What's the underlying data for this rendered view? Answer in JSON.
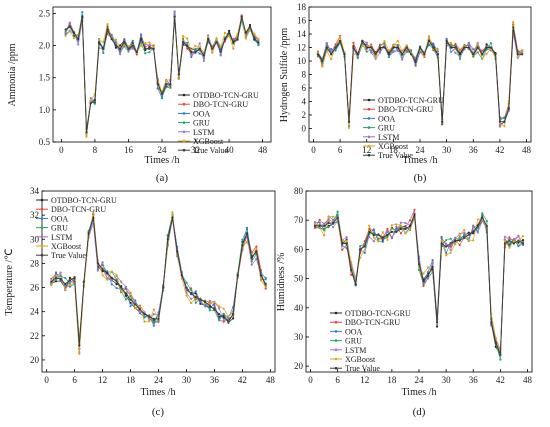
{
  "legend_labels": [
    "OTDBO-TCN-GRU",
    "DBO-TCN-GRU",
    "OOA",
    "GRU",
    "LSTM",
    "XGBoost",
    "True Value"
  ],
  "series_colors": [
    "#222222",
    "#e8413b",
    "#2f7fd0",
    "#23a36b",
    "#9b74c9",
    "#d9a514",
    "#3a3a3a"
  ],
  "chart_data": [
    {
      "type": "line",
      "caption": "(a)",
      "xlabel": "Times /h",
      "ylabel": "Ammonia /ppm",
      "xlim": [
        -2,
        50
      ],
      "ylim": [
        0.5,
        2.6
      ],
      "xticks": [
        0,
        8,
        16,
        24,
        32,
        40,
        48
      ],
      "yticks": [
        0.5,
        1.0,
        1.5,
        2.0,
        2.5
      ],
      "ytick_labels": [
        "0.5",
        "1.0",
        "1.5",
        "2.0",
        "2.5"
      ],
      "legend_position": "lower-right",
      "x": [
        1,
        2,
        3,
        4,
        5,
        6,
        7,
        8,
        9,
        10,
        11,
        12,
        13,
        14,
        15,
        16,
        17,
        18,
        19,
        20,
        21,
        22,
        23,
        24,
        25,
        26,
        27,
        28,
        29,
        30,
        31,
        32,
        33,
        34,
        35,
        36,
        37,
        38,
        39,
        40,
        41,
        42,
        43,
        44,
        45,
        46,
        47
      ],
      "true_values": [
        2.25,
        2.3,
        2.2,
        2.1,
        2.45,
        0.65,
        1.1,
        1.15,
        2.05,
        1.95,
        2.25,
        2.1,
        2.0,
        1.95,
        2.05,
        1.95,
        2.0,
        1.9,
        2.1,
        1.95,
        1.95,
        1.95,
        1.4,
        1.25,
        1.4,
        1.4,
        2.45,
        1.55,
        2.05,
        2.0,
        1.9,
        1.9,
        1.95,
        1.85,
        2.1,
        1.95,
        2.05,
        1.9,
        2.1,
        2.2,
        2.05,
        2.1,
        2.45,
        2.2,
        2.3,
        2.1,
        2.05
      ],
      "series_names": [
        "OTDBO-TCN-GRU",
        "DBO-TCN-GRU",
        "OOA",
        "GRU",
        "LSTM",
        "XGBoost",
        "True Value"
      ]
    },
    {
      "type": "line",
      "caption": "(b)",
      "xlabel": "Times /h",
      "ylabel": "Hydrogen Sulfide /ppm",
      "xlim": [
        -1,
        49
      ],
      "ylim": [
        -2,
        18
      ],
      "xticks": [
        0,
        6,
        12,
        18,
        24,
        30,
        36,
        42,
        48
      ],
      "yticks": [
        0,
        2,
        4,
        6,
        8,
        10,
        12,
        14,
        16,
        18
      ],
      "ytick_labels": [
        "0",
        "2",
        "4",
        "6",
        "8",
        "10",
        "12",
        "14",
        "16",
        "18"
      ],
      "legend_position": "center",
      "x": [
        1,
        2,
        3,
        4,
        5,
        6,
        7,
        8,
        9,
        10,
        11,
        12,
        13,
        14,
        15,
        16,
        17,
        18,
        19,
        20,
        21,
        22,
        23,
        24,
        25,
        26,
        27,
        28,
        29,
        30,
        31,
        32,
        33,
        34,
        35,
        36,
        37,
        38,
        39,
        40,
        41,
        42,
        43,
        44,
        45,
        46,
        47
      ],
      "true_values": [
        11,
        10,
        12,
        11,
        12,
        13,
        11,
        1,
        12,
        11,
        13,
        12,
        12,
        11,
        12,
        12,
        11,
        12,
        12,
        11,
        12,
        11,
        10,
        12,
        11,
        13,
        12,
        11,
        1,
        13,
        12,
        12,
        11,
        12,
        12,
        11,
        12,
        11,
        12,
        12,
        11,
        1,
        1,
        3,
        15,
        11,
        11
      ],
      "series_names": [
        "OTDBO-TCN-GRU",
        "DBO-TCN-GRU",
        "OOA",
        "GRU",
        "LSTM",
        "XGBoost",
        "True Value"
      ]
    },
    {
      "type": "line",
      "caption": "(c)",
      "xlabel": "Times /h",
      "ylabel": "Temperature /℃",
      "xlim": [
        -1,
        49
      ],
      "ylim": [
        19,
        34
      ],
      "xticks": [
        0,
        6,
        12,
        18,
        24,
        30,
        36,
        42,
        48
      ],
      "yticks": [
        20,
        22,
        24,
        26,
        28,
        30,
        32,
        34
      ],
      "ytick_labels": [
        "20",
        "22",
        "24",
        "26",
        "28",
        "30",
        "32",
        "34"
      ],
      "legend_position": "top-left",
      "x": [
        1,
        2,
        3,
        4,
        5,
        6,
        7,
        8,
        9,
        10,
        11,
        12,
        13,
        14,
        15,
        16,
        17,
        18,
        19,
        20,
        21,
        22,
        23,
        24,
        25,
        26,
        27,
        28,
        29,
        30,
        31,
        32,
        33,
        34,
        35,
        36,
        37,
        38,
        39,
        40,
        41,
        42,
        43,
        44,
        45,
        46,
        47
      ],
      "true_values": [
        26.5,
        26.8,
        26.7,
        26.3,
        26.6,
        26.8,
        21.2,
        26.5,
        30.5,
        31.8,
        28,
        27.5,
        27.2,
        26.8,
        26.5,
        26,
        25.5,
        25,
        24.6,
        24.2,
        23.8,
        23.6,
        23.4,
        23.4,
        26,
        30,
        31.8,
        29,
        27,
        26,
        25.5,
        25.2,
        25,
        24.8,
        24.5,
        24.2,
        23.8,
        23.5,
        23.2,
        23.8,
        27,
        29.5,
        30.5,
        28.5,
        29,
        27,
        26.3
      ],
      "series_names": [
        "OTDBO-TCN-GRU",
        "DBO-TCN-GRU",
        "OOA",
        "GRU",
        "LSTM",
        "XGBoost",
        "True Value"
      ]
    },
    {
      "type": "line",
      "caption": "(d)",
      "xlabel": "Times /h",
      "ylabel": "Humidness /%",
      "xlim": [
        -1,
        49
      ],
      "ylim": [
        18,
        80
      ],
      "xticks": [
        0,
        6,
        12,
        18,
        24,
        30,
        36,
        42,
        48
      ],
      "yticks": [
        20,
        30,
        40,
        50,
        60,
        70,
        80
      ],
      "ytick_labels": [
        "20",
        "30",
        "40",
        "50",
        "60",
        "70",
        "80"
      ],
      "legend_position": "bottom-left",
      "x": [
        1,
        2,
        3,
        4,
        5,
        6,
        7,
        8,
        9,
        10,
        11,
        12,
        13,
        14,
        15,
        16,
        17,
        18,
        19,
        20,
        21,
        22,
        23,
        24,
        25,
        26,
        27,
        28,
        29,
        30,
        31,
        32,
        33,
        34,
        35,
        36,
        37,
        38,
        39,
        40,
        41,
        42,
        43,
        44,
        45,
        46,
        47
      ],
      "true_values": [
        68,
        68,
        68,
        69,
        69,
        71,
        62,
        62,
        53,
        48,
        60,
        61,
        66,
        65,
        65,
        64,
        65,
        66,
        66,
        67,
        67,
        68,
        72,
        55,
        49,
        51,
        54,
        35,
        62,
        61,
        62,
        63,
        63,
        64,
        65,
        66,
        68,
        71,
        68,
        35,
        28,
        24,
        62,
        63,
        62,
        63,
        62
      ],
      "series_names": [
        "OTDBO-TCN-GRU",
        "DBO-TCN-GRU",
        "OOA",
        "GRU",
        "LSTM",
        "XGBoost",
        "True Value"
      ]
    }
  ]
}
